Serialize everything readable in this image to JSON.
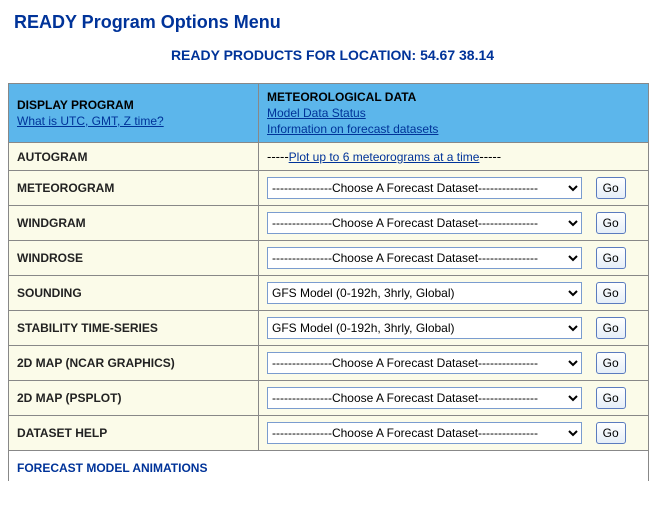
{
  "page_title": "READY Program Options Menu",
  "location_prefix": "READY PRODUCTS FOR LOCATION:",
  "location_coords": "54.67 38.14",
  "header": {
    "left_title": "DISPLAY PROGRAM",
    "left_link": "What is UTC, GMT, Z time?",
    "right_title": "METEOROLOGICAL DATA",
    "right_link1": "Model Data Status",
    "right_link2": "Information on forecast datasets"
  },
  "autogram": {
    "label": "AUTOGRAM",
    "prefix": "-----",
    "link": "Plot up to 6 meteorograms at a time",
    "suffix": "-----"
  },
  "go_label": "Go",
  "choose_placeholder": "---------------Choose A Forecast Dataset---------------",
  "gfs_option": "GFS Model (0-192h, 3hrly, Global)",
  "rows": {
    "meteorogram": "METEOROGRAM",
    "windgram": "WINDGRAM",
    "windrose": "WINDROSE",
    "sounding": "SOUNDING",
    "stability": "STABILITY TIME-SERIES",
    "map_ncar": "2D MAP (NCAR GRAPHICS)",
    "map_psplot": "2D MAP (PSPLOT)",
    "dataset_help": "DATASET HELP"
  },
  "section_forecast": "FORECAST MODEL ANIMATIONS"
}
